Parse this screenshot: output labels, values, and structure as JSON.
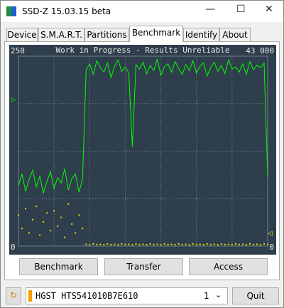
{
  "window": {
    "title": "SSD-Z 15.03.15 beta"
  },
  "tabs": [
    {
      "label": "Device"
    },
    {
      "label": "S.M.A.R.T."
    },
    {
      "label": "Partitions"
    },
    {
      "label": "Benchmark",
      "selected": true
    },
    {
      "label": "Identify"
    },
    {
      "label": "About"
    }
  ],
  "chart_data": {
    "type": "line",
    "title": "Work in Progress - Results Unreliable",
    "ylim": [
      0,
      250
    ],
    "yticks": [
      0,
      250
    ],
    "y2lim": [
      0,
      43000
    ],
    "y2ticks": [
      0,
      {
        "value": 43000,
        "label": "43 000"
      }
    ],
    "grid": true,
    "series": [
      {
        "color": "#00ff00",
        "values": [
          80,
          95,
          72,
          88,
          100,
          78,
          92,
          70,
          85,
          98,
          76,
          90,
          83,
          102,
          74,
          89,
          95,
          71,
          88,
          232,
          240,
          226,
          244,
          235,
          229,
          241,
          222,
          237,
          245,
          230,
          236,
          228,
          131,
          239,
          233,
          242,
          227,
          238,
          231,
          246,
          225,
          236,
          240,
          229,
          243,
          234,
          226,
          239,
          231,
          244,
          228,
          237,
          241,
          224,
          235,
          242,
          230,
          238,
          227,
          245,
          233,
          236,
          229,
          240,
          226,
          243,
          232,
          238,
          235,
          241,
          90
        ]
      },
      {
        "color": "#e0e000",
        "axis": "y2",
        "style": "dots",
        "values": [
          7000,
          4000,
          8500,
          3000,
          6000,
          9000,
          2500,
          5500,
          7500,
          3500,
          8000,
          4500,
          6500,
          2000,
          9500,
          5000,
          3000,
          7000,
          4000,
          400,
          300,
          500,
          350,
          400,
          300,
          500,
          350,
          400,
          300,
          500,
          350,
          400,
          300,
          500,
          350,
          400,
          300,
          500,
          350,
          400,
          300,
          500,
          350,
          400,
          300,
          500,
          350,
          400,
          300,
          500,
          350,
          400,
          300,
          500,
          350,
          400,
          300,
          500,
          350,
          400,
          300,
          500,
          350,
          400,
          300,
          500,
          350,
          400,
          300,
          500,
          350
        ]
      }
    ]
  },
  "buttons": [
    "Benchmark",
    "Transfer",
    "Access"
  ],
  "drive": {
    "name": "HGST HTS541010B7E610",
    "index": 1
  },
  "quit": "Quit"
}
